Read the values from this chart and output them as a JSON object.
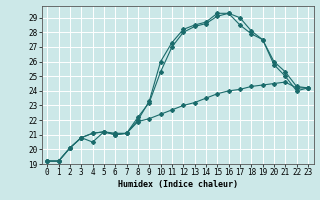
{
  "title": "",
  "xlabel": "Humidex (Indice chaleur)",
  "bg_color": "#cce8e8",
  "grid_color": "#ffffff",
  "line_color": "#1a6b6b",
  "marker": "D",
  "markersize": 2.0,
  "linewidth": 0.8,
  "xlim": [
    -0.5,
    23.5
  ],
  "ylim": [
    19,
    29.8
  ],
  "xticks": [
    0,
    1,
    2,
    3,
    4,
    5,
    6,
    7,
    8,
    9,
    10,
    11,
    12,
    13,
    14,
    15,
    16,
    17,
    18,
    19,
    20,
    21,
    22,
    23
  ],
  "yticks": [
    19,
    20,
    21,
    22,
    23,
    24,
    25,
    26,
    27,
    28,
    29
  ],
  "curve1_x": [
    0,
    1,
    2,
    3,
    4,
    5,
    6,
    7,
    8,
    9,
    10,
    11,
    12,
    13,
    14,
    15,
    16,
    17,
    18,
    19,
    20,
    21,
    22,
    23
  ],
  "curve1_y": [
    19.2,
    19.2,
    20.1,
    20.8,
    20.5,
    21.2,
    21.1,
    21.1,
    22.0,
    23.3,
    26.0,
    27.3,
    28.2,
    28.5,
    28.7,
    29.3,
    29.3,
    29.0,
    28.1,
    27.5,
    26.0,
    25.3,
    24.3,
    24.2
  ],
  "curve2_x": [
    0,
    1,
    2,
    3,
    4,
    5,
    6,
    7,
    8,
    9,
    10,
    11,
    12,
    13,
    14,
    15,
    16,
    17,
    18,
    19,
    20,
    21,
    22,
    23
  ],
  "curve2_y": [
    19.2,
    19.2,
    20.1,
    20.8,
    21.1,
    21.2,
    21.0,
    21.1,
    22.2,
    23.2,
    25.3,
    27.0,
    28.0,
    28.4,
    28.6,
    29.1,
    29.3,
    28.5,
    27.9,
    27.5,
    25.8,
    25.0,
    24.0,
    24.2
  ],
  "curve3_x": [
    0,
    1,
    2,
    3,
    4,
    5,
    6,
    7,
    8,
    9,
    10,
    11,
    12,
    13,
    14,
    15,
    16,
    17,
    18,
    19,
    20,
    21,
    22,
    23
  ],
  "curve3_y": [
    19.2,
    19.2,
    20.1,
    20.8,
    21.1,
    21.2,
    21.0,
    21.1,
    21.9,
    22.1,
    22.4,
    22.7,
    23.0,
    23.2,
    23.5,
    23.8,
    24.0,
    24.1,
    24.3,
    24.4,
    24.5,
    24.6,
    24.2,
    24.2
  ],
  "xlabel_fontsize": 6.0,
  "tick_fontsize": 5.5
}
